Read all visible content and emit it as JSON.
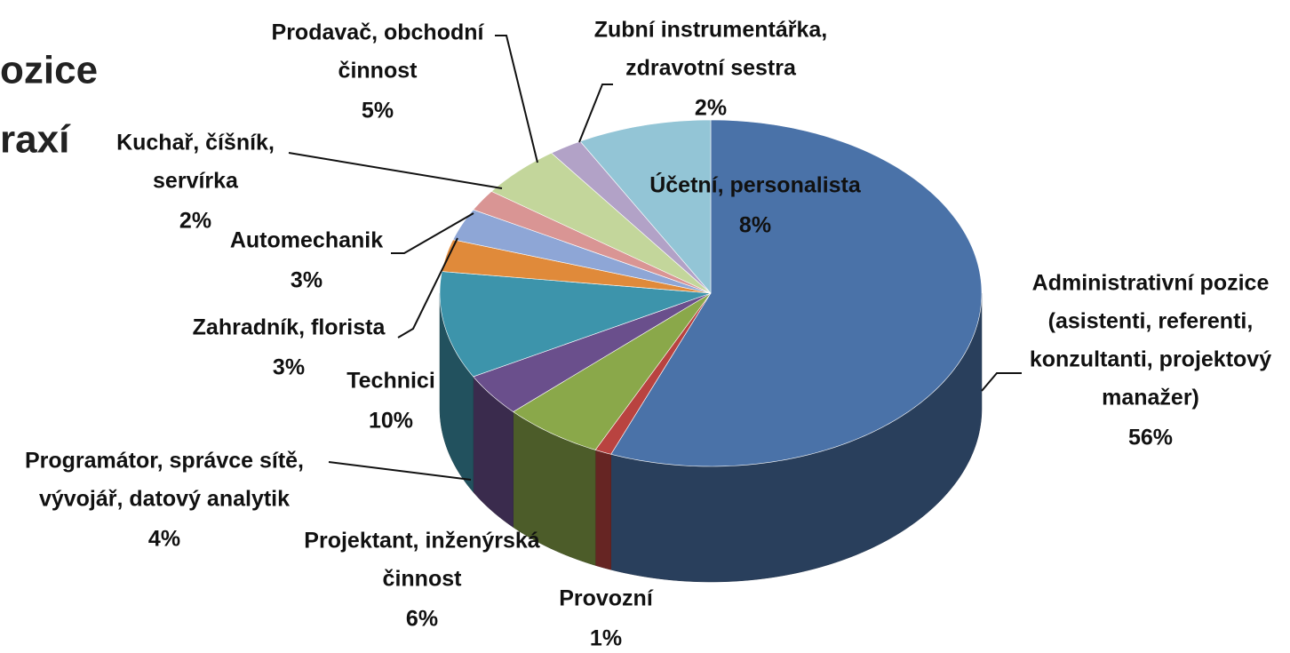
{
  "chart_data": {
    "type": "pie3d",
    "title_fragments": [
      "ozice",
      "raxí"
    ],
    "categories": [
      [
        "Administrativní pozice",
        "(asistenti, referenti,",
        "konzultanti, projektový",
        "manažer)"
      ],
      [
        "Provozní"
      ],
      [
        "Projektant, inženýrská",
        "činnost"
      ],
      [
        "Programátor, správce sítě,",
        "vývojář, datový analytik"
      ],
      [
        "Technici"
      ],
      [
        "Zahradník, florista"
      ],
      [
        "Automechanik"
      ],
      [
        "Kuchař, číšník,",
        "servírka"
      ],
      [
        "Prodavač, obchodní",
        "činnost"
      ],
      [
        "Zubní instrumentářka,",
        "zdravotní sestra"
      ],
      [
        "Účetní, personalista"
      ]
    ],
    "values": [
      56,
      1,
      6,
      4,
      10,
      3,
      3,
      2,
      5,
      2,
      8
    ],
    "value_labels": [
      "56%",
      "1%",
      "6%",
      "4%",
      "10%",
      "3%",
      "3%",
      "2%",
      "5%",
      "2%",
      "8%"
    ],
    "colors": [
      "#4a72a8",
      "#b94340",
      "#8aa84a",
      "#6a4f8c",
      "#3d94ab",
      "#e08a3a",
      "#8ea6d6",
      "#d99594",
      "#c3d69b",
      "#b2a2c7",
      "#93c5d6"
    ]
  }
}
